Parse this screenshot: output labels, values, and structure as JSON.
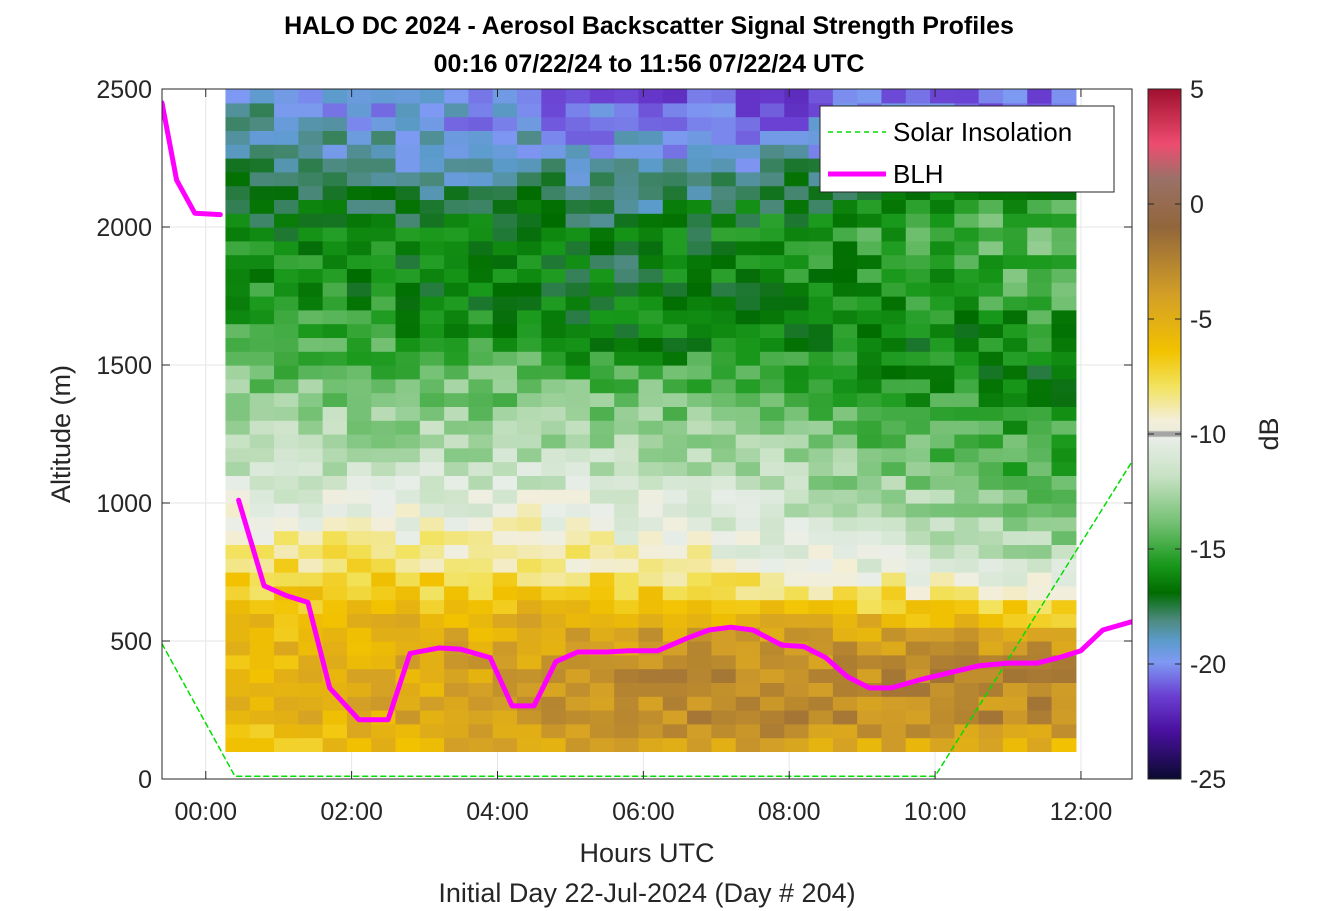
{
  "chart_data": {
    "type": "heatmap",
    "title": "HALO DC 2024 - Aerosol Backscatter Signal Strength Profiles",
    "subtitle": "00:16 07/22/24 to 11:56 07/22/24  UTC",
    "xlabel": "Hours UTC",
    "xlabel2": "Initial Day 22-Jul-2024 (Day # 204)",
    "ylabel": "Altitude (m)",
    "colorbar_label": "dB",
    "xlim_hours": [
      -0.6,
      12.7
    ],
    "ylim": [
      0,
      2500
    ],
    "x_ticks": [
      0,
      2,
      4,
      6,
      8,
      10,
      12
    ],
    "x_tick_labels": [
      "00:00",
      "02:00",
      "04:00",
      "06:00",
      "08:00",
      "10:00",
      "12:00"
    ],
    "y_ticks": [
      0,
      500,
      1000,
      1500,
      2000,
      2500
    ],
    "y_tick_labels": [
      "0",
      "500",
      "1000",
      "1500",
      "2000",
      "2500"
    ],
    "clim": [
      -25,
      5
    ],
    "colorbar_ticks": [
      5,
      0,
      -5,
      -10,
      -15,
      -20,
      -25
    ],
    "colorbar_tick_labels": [
      "5",
      "0",
      "-5",
      "-10",
      "-15",
      "-20",
      "-25"
    ],
    "grid": true,
    "legend_position": "top-right",
    "heatmap": {
      "time_start_hours": 0.27,
      "time_end_hours": 11.93,
      "alt_bottom_m": 100,
      "alt_top_m": 2500,
      "n_columns": 35,
      "profile_knots_alt_m": [
        100,
        200,
        300,
        400,
        500,
        600,
        700,
        800,
        900,
        1000,
        1100,
        1200,
        1300,
        1400,
        1500,
        1600,
        1800,
        2000,
        2200,
        2400,
        2500
      ],
      "profile_knots_db_early": [
        -7,
        -6,
        -6,
        -6,
        -6,
        -6.5,
        -7,
        -8,
        -9,
        -10.5,
        -11.5,
        -12.5,
        -13,
        -13.5,
        -14,
        -15,
        -16,
        -16.5,
        -18,
        -19,
        -19
      ],
      "profile_knots_db_mid": [
        -4,
        -3,
        -3,
        -3,
        -4,
        -5,
        -7.5,
        -9,
        -10,
        -10.5,
        -11.5,
        -12.5,
        -13.5,
        -14,
        -15,
        -16.5,
        -17,
        -17,
        -19,
        -20.5,
        -21
      ],
      "profile_knots_db_late": [
        -6,
        -3,
        -3,
        -2.5,
        -4,
        -7,
        -10,
        -12.5,
        -13.5,
        -14.5,
        -15,
        -15,
        -15.5,
        -16,
        -17,
        -16,
        -14.5,
        -14,
        -17,
        -21,
        -21
      ]
    },
    "series": [
      {
        "name": "Solar Insolation",
        "style": "dashed",
        "color": "#00dd00",
        "x": [
          -0.6,
          0.4,
          10.0,
          12.7
        ],
        "y": [
          490,
          10,
          10,
          1150
        ]
      },
      {
        "name": "BLH",
        "style": "solid",
        "color": "#ff00ff",
        "x": [
          -0.6,
          -0.4,
          -0.15,
          0.2
        ],
        "y": [
          2450,
          2170,
          2050,
          2045
        ]
      },
      {
        "name": "BLH",
        "style": "solid",
        "color": "#ff00ff",
        "x": [
          0.45,
          0.8,
          1.1,
          1.4,
          1.7,
          2.1,
          2.5,
          2.8,
          3.2,
          3.5,
          3.9,
          4.2,
          4.5,
          4.8,
          5.1,
          5.5,
          5.8,
          6.2,
          6.6,
          6.9,
          7.2,
          7.5,
          7.9,
          8.2,
          8.5,
          8.8,
          9.1,
          9.4,
          9.8,
          10.2,
          10.6,
          11.0,
          11.4,
          11.7,
          12.0,
          12.3,
          12.7
        ],
        "y": [
          1010,
          700,
          665,
          640,
          330,
          215,
          215,
          455,
          475,
          470,
          440,
          265,
          265,
          425,
          460,
          460,
          465,
          465,
          510,
          540,
          550,
          540,
          485,
          480,
          440,
          370,
          330,
          330,
          360,
          385,
          410,
          420,
          420,
          440,
          465,
          540,
          570
        ]
      }
    ]
  }
}
